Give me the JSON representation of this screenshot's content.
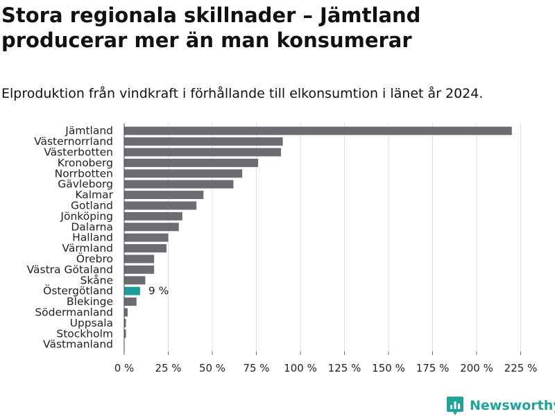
{
  "title": "Stora regionala skillnader – Jämtland producerar mer än man konsumerar",
  "subtitle": "Elproduktion från vindkraft i förhållande till elkonsumtion i länet år 2024.",
  "brand": "Newsworthy",
  "colors": {
    "bar": "#6c6c72",
    "highlight": "#1a9f9a",
    "grid": "#dddddd",
    "brand": "#22a39a"
  },
  "chart_data": {
    "type": "bar",
    "orientation": "horizontal",
    "categories": [
      "Jämtland",
      "Västernorrland",
      "Västerbotten",
      "Kronoberg",
      "Norrbotten",
      "Gävleborg",
      "Kalmar",
      "Gotland",
      "Jönköping",
      "Dalarna",
      "Halland",
      "Värmland",
      "Örebro",
      "Västra Götaland",
      "Skåne",
      "Östergötland",
      "Blekinge",
      "Södermanland",
      "Uppsala",
      "Stockholm",
      "Västmanland"
    ],
    "values": [
      220,
      90,
      89,
      76,
      67,
      62,
      45,
      41,
      33,
      31,
      25,
      24,
      17,
      17,
      12,
      9,
      7,
      2,
      1,
      1,
      0
    ],
    "unit": "%",
    "highlight": {
      "category": "Östergötland",
      "label": "9 %"
    },
    "xlim": [
      0,
      225
    ],
    "xticks": [
      0,
      25,
      50,
      75,
      100,
      125,
      150,
      175,
      200,
      225
    ],
    "xtick_labels": [
      "0 %",
      "25 %",
      "50 %",
      "75 %",
      "100 %",
      "125 %",
      "150 %",
      "175 %",
      "200 %",
      "225 %"
    ],
    "grid": true
  }
}
